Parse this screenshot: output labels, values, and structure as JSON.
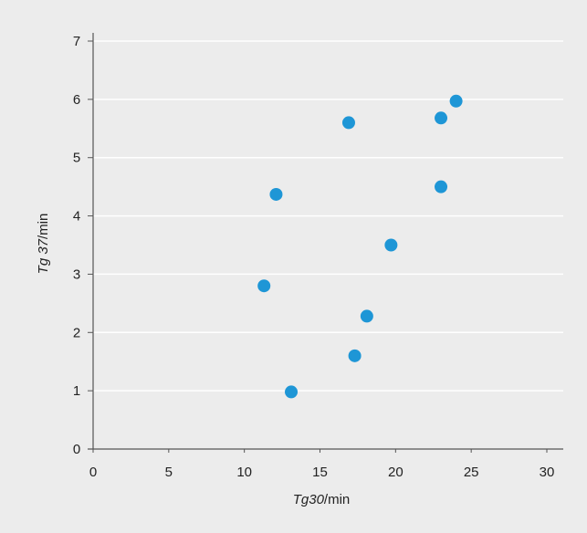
{
  "chart_data": {
    "type": "scatter",
    "xlabel": {
      "italic": "Tg30",
      "unit": "/min"
    },
    "ylabel": {
      "italic": "Tg 37",
      "unit": "/min"
    },
    "xlim": [
      0,
      30
    ],
    "ylim": [
      0,
      7
    ],
    "xticks": [
      "0",
      "5",
      "10",
      "15",
      "20",
      "25",
      "30"
    ],
    "yticks": [
      "0",
      "1",
      "2",
      "3",
      "4",
      "5",
      "6",
      "7"
    ],
    "grid": "horizontal",
    "points": [
      {
        "x": 11.3,
        "y": 2.8
      },
      {
        "x": 12.1,
        "y": 4.37
      },
      {
        "x": 13.1,
        "y": 0.98
      },
      {
        "x": 16.9,
        "y": 5.6
      },
      {
        "x": 17.3,
        "y": 1.6
      },
      {
        "x": 18.1,
        "y": 2.28
      },
      {
        "x": 19.7,
        "y": 3.5
      },
      {
        "x": 23.0,
        "y": 4.5
      },
      {
        "x": 23.0,
        "y": 5.68
      },
      {
        "x": 24.0,
        "y": 5.97
      }
    ],
    "colors": {
      "marker": "#1e96d6",
      "grid": "#ffffff",
      "axis": "#555555",
      "background": "#ececec"
    }
  }
}
